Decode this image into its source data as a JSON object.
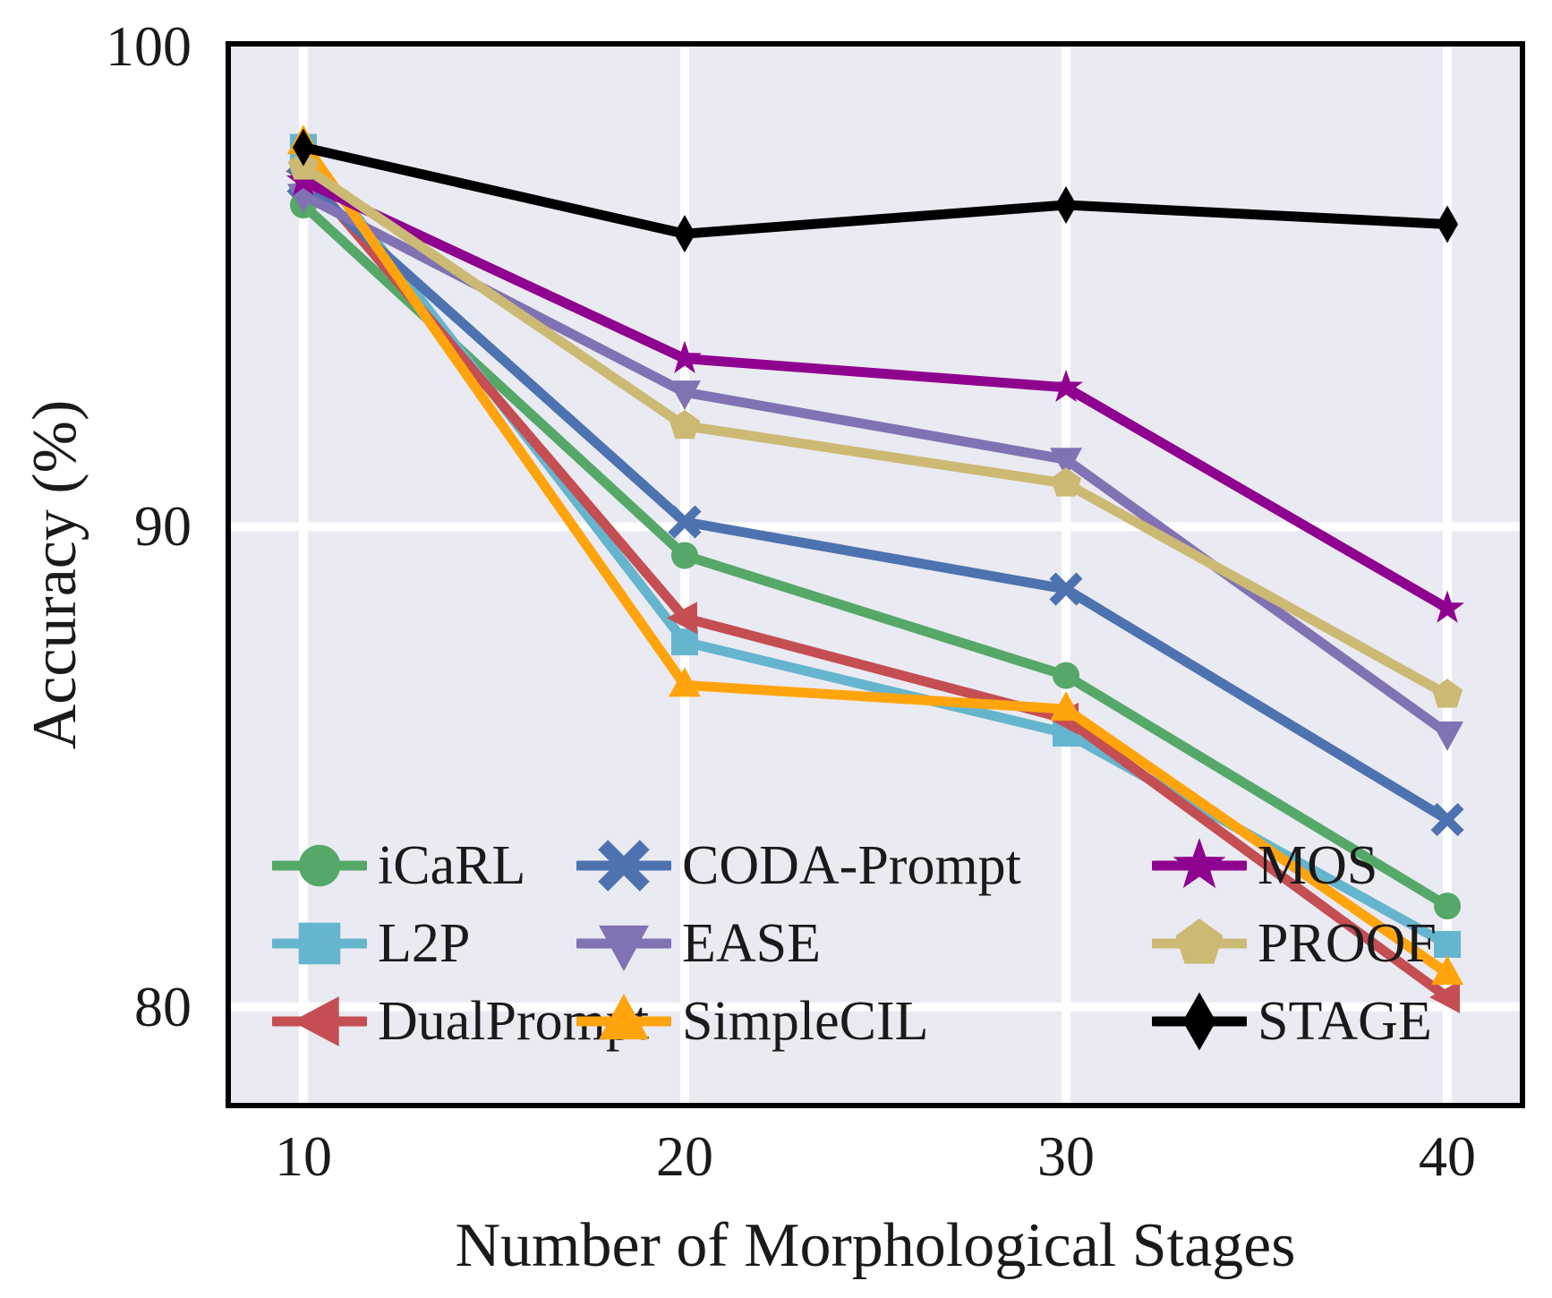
{
  "figure": {
    "background": "#ffffff",
    "plot_background": "#eaeaf2",
    "grid_color": "#ffffff",
    "frame_color": "#000000",
    "text_color": "#1a1a1a"
  },
  "chart_data": {
    "type": "line",
    "title": "",
    "xlabel": "Number of Morphological Stages",
    "ylabel": "Accuracy (%)",
    "x": [
      10,
      20,
      30,
      40
    ],
    "xtick_labels": [
      "10",
      "20",
      "30",
      "40"
    ],
    "ytick_values": [
      100,
      90,
      80
    ],
    "ytick_labels": [
      "100",
      "90",
      "80"
    ],
    "xlim": [
      8.1,
      41.9
    ],
    "ylim": [
      78,
      100
    ],
    "grid": true,
    "legend_position": "lower-left-inside",
    "series": [
      {
        "name": "iCaRL",
        "color": "#55a868",
        "marker": "circle",
        "values": [
          96.7,
          89.4,
          86.9,
          82.1
        ]
      },
      {
        "name": "L2P",
        "color": "#64b5cd",
        "marker": "square",
        "values": [
          97.9,
          87.6,
          85.7,
          81.3
        ]
      },
      {
        "name": "DualPrompt",
        "color": "#c44e52",
        "marker": "triangle-left",
        "values": [
          97.4,
          88.1,
          86.0,
          80.2
        ]
      },
      {
        "name": "CODA-Prompt",
        "color": "#4c72b0",
        "marker": "x",
        "values": [
          97.2,
          90.1,
          88.7,
          83.9
        ]
      },
      {
        "name": "EASE",
        "color": "#8172b3",
        "marker": "triangle-down",
        "values": [
          96.9,
          92.8,
          91.4,
          85.7
        ]
      },
      {
        "name": "SimpleCIL",
        "color": "#ffa40d",
        "marker": "triangle-up",
        "values": [
          98.0,
          86.7,
          86.2,
          80.7
        ]
      },
      {
        "name": "MOS",
        "color": "#8f018f",
        "marker": "star",
        "values": [
          97.2,
          93.5,
          92.9,
          88.3
        ]
      },
      {
        "name": "PROOF",
        "color": "#ccb974",
        "marker": "pentagon",
        "values": [
          97.5,
          92.1,
          90.9,
          86.5
        ]
      },
      {
        "name": "STAGE",
        "color": "#000000",
        "marker": "diamond",
        "values": [
          97.9,
          96.1,
          96.7,
          96.3
        ]
      }
    ],
    "legend_columns": [
      [
        "iCaRL",
        "L2P",
        "DualPrompt"
      ],
      [
        "CODA-Prompt",
        "EASE",
        "SimpleCIL"
      ],
      [
        "MOS",
        "PROOF",
        "STAGE"
      ]
    ]
  }
}
